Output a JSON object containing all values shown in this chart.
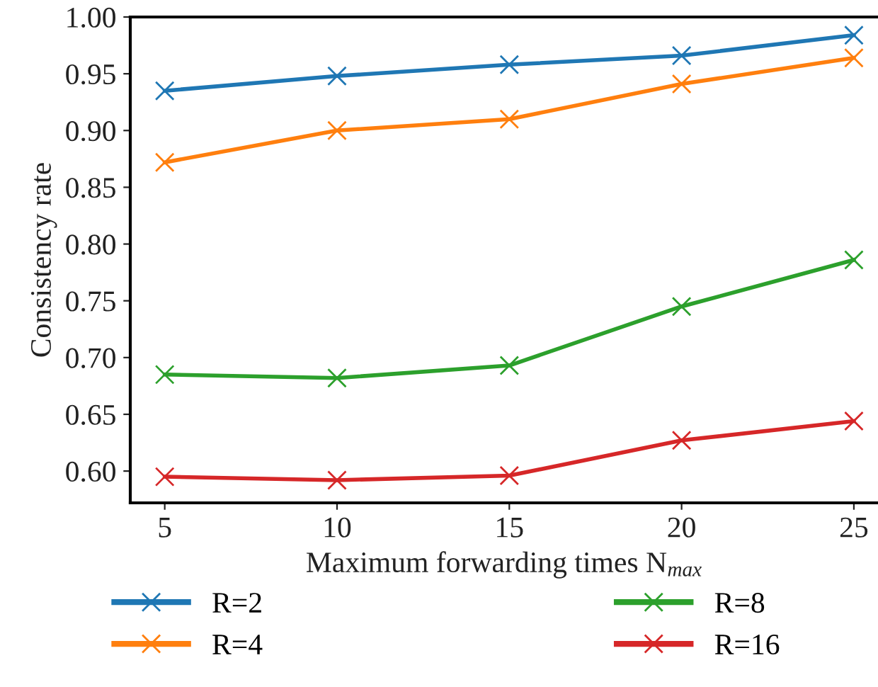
{
  "chart_data": {
    "type": "line",
    "xlabel": "Maximum forwarding times N$_{max}$",
    "ylabel": "Consistency rate",
    "x": [
      5,
      10,
      15,
      20,
      25
    ],
    "series": [
      {
        "name": "R=2",
        "color": "#1f77b4",
        "values": [
          0.935,
          0.948,
          0.958,
          0.966,
          0.984
        ]
      },
      {
        "name": "R=4",
        "color": "#ff7f0e",
        "values": [
          0.872,
          0.9,
          0.91,
          0.941,
          0.964
        ]
      },
      {
        "name": "R=8",
        "color": "#2ca02c",
        "values": [
          0.685,
          0.682,
          0.693,
          0.745,
          0.786
        ]
      },
      {
        "name": "R=16",
        "color": "#d62728",
        "values": [
          0.595,
          0.592,
          0.596,
          0.627,
          0.644
        ]
      }
    ],
    "xlim": [
      4,
      25.7
    ],
    "xticks": [
      5,
      10,
      15,
      20,
      25
    ],
    "ylim": [
      0.572,
      1.0
    ],
    "yticks": [
      {
        "value": 0.6,
        "label": "0.60"
      },
      {
        "value": 0.65,
        "label": "0.65"
      },
      {
        "value": 0.7,
        "label": "0.70"
      },
      {
        "value": 0.75,
        "label": "0.75"
      },
      {
        "value": 0.8,
        "label": "0.80"
      },
      {
        "value": 0.85,
        "label": "0.85"
      },
      {
        "value": 0.9,
        "label": "0.90"
      },
      {
        "value": 0.95,
        "label": "0.95"
      },
      {
        "value": 1.0,
        "label": "1.00"
      }
    ],
    "grid": false,
    "legend": "bottom",
    "marker": "cross",
    "line_style": "solid"
  }
}
